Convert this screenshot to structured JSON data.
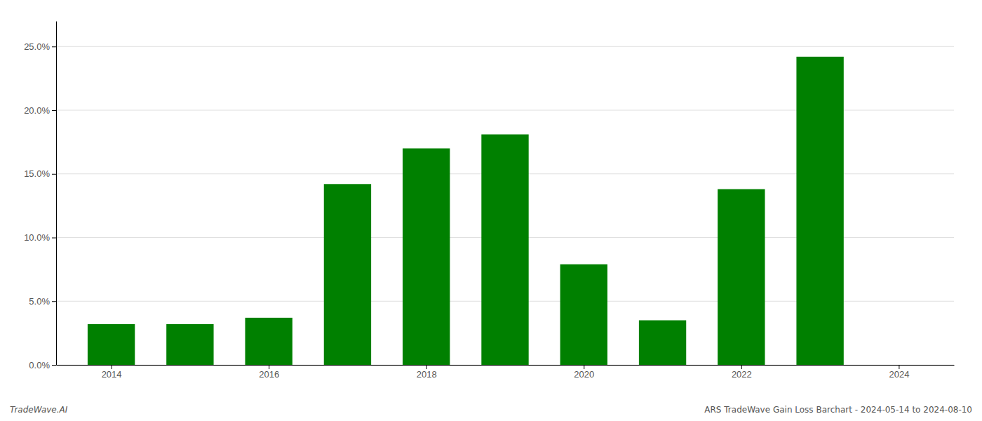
{
  "chart_data": {
    "type": "bar",
    "x": [
      2014,
      2015,
      2016,
      2017,
      2018,
      2019,
      2020,
      2021,
      2022,
      2023
    ],
    "values": [
      0.032,
      0.032,
      0.037,
      0.142,
      0.17,
      0.181,
      0.079,
      0.035,
      0.138,
      0.242
    ],
    "color": "#008000",
    "xlim": [
      2013.3,
      2024.7
    ],
    "xticks": [
      2014,
      2016,
      2018,
      2020,
      2022,
      2024
    ],
    "ylim": [
      0,
      0.27
    ],
    "yticks": [
      {
        "value": 0.0,
        "label": "0.0%"
      },
      {
        "value": 0.05,
        "label": "5.0%"
      },
      {
        "value": 0.1,
        "label": "10.0%"
      },
      {
        "value": 0.15,
        "label": "15.0%"
      },
      {
        "value": 0.2,
        "label": "20.0%"
      },
      {
        "value": 0.25,
        "label": "25.0%"
      }
    ],
    "grid": true,
    "annotations": [
      "TradeWave.AI",
      "ARS TradeWave Gain Loss Barchart - 2024-05-14 to 2024-08-10"
    ]
  }
}
